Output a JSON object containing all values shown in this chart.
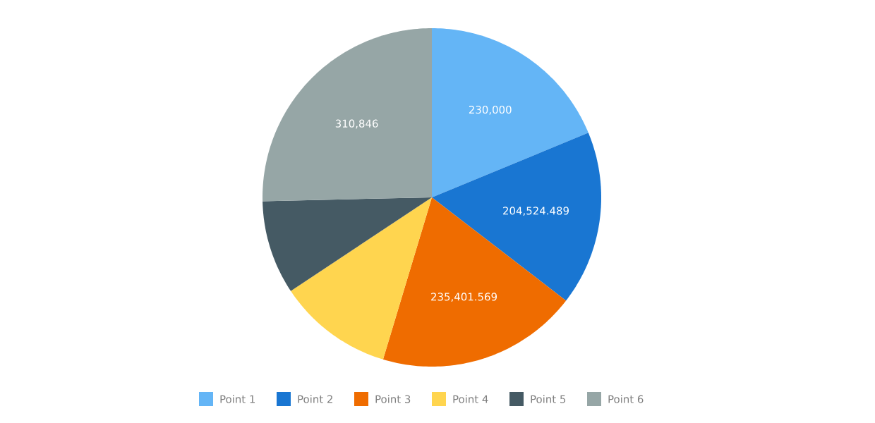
{
  "chart_data": {
    "type": "pie",
    "categories": [
      "Point 1",
      "Point 2",
      "Point 3",
      "Point 4",
      "Point 5",
      "Point 6"
    ],
    "values": [
      230000,
      204524.489,
      235401.569,
      135000,
      110000,
      310846
    ],
    "value_labels": [
      "230,000",
      "204,524.489",
      "235,401.569",
      null,
      null,
      "310,846"
    ],
    "colors": [
      "#64b5f6",
      "#1976d2",
      "#ef6c00",
      "#ffd54f",
      "#455a64",
      "#96a6a6"
    ],
    "legend": "bottom"
  }
}
